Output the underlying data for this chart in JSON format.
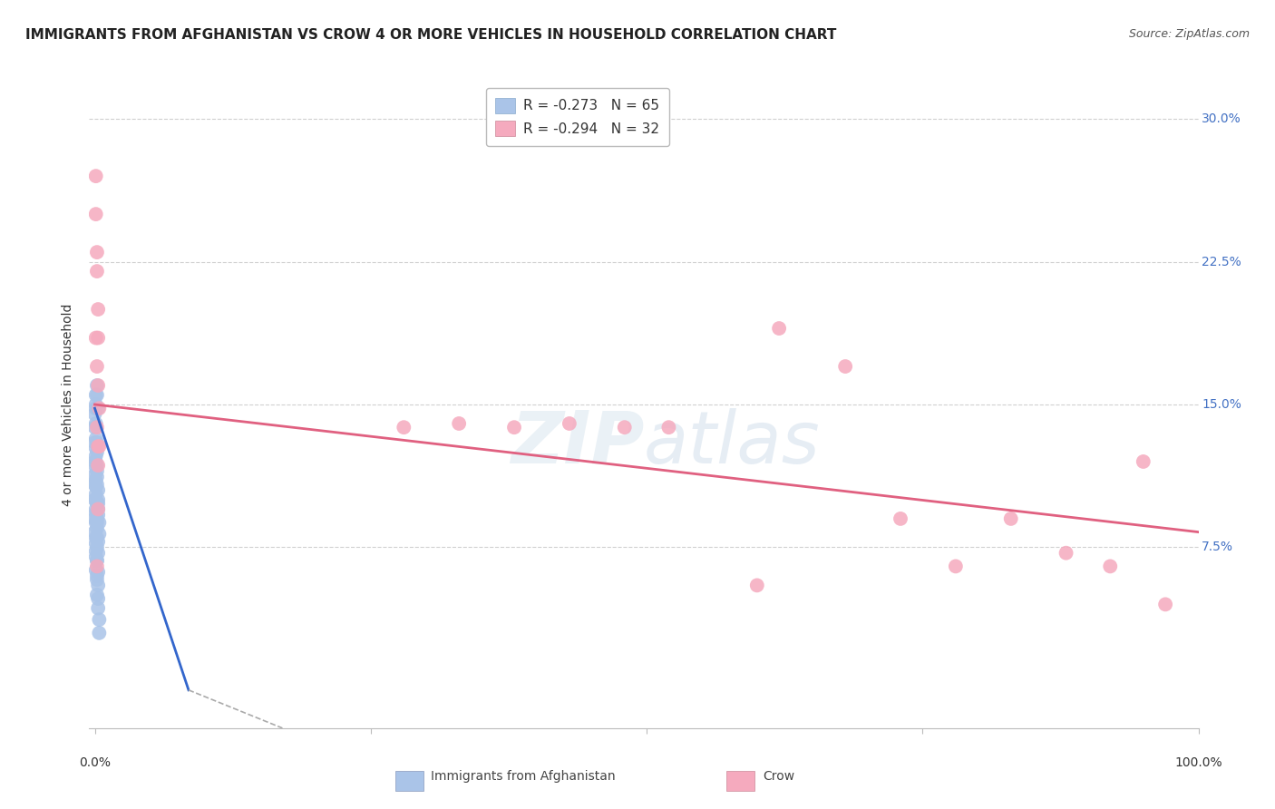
{
  "title": "IMMIGRANTS FROM AFGHANISTAN VS CROW 4 OR MORE VEHICLES IN HOUSEHOLD CORRELATION CHART",
  "source": "Source: ZipAtlas.com",
  "ylabel": "4 or more Vehicles in Household",
  "ytick_labels": [
    "7.5%",
    "15.0%",
    "22.5%",
    "30.0%"
  ],
  "ytick_values": [
    0.075,
    0.15,
    0.225,
    0.3
  ],
  "xlim": [
    -0.005,
    1.0
  ],
  "ylim": [
    -0.02,
    0.32
  ],
  "legend1_label": "R = -0.273   N = 65",
  "legend2_label": "R = -0.294   N = 32",
  "legend1_color": "#aac4e8",
  "legend2_color": "#f5aabe",
  "watermark": "ZIPatlas",
  "blue_scatter_x": [
    0.0,
    0.001,
    0.001,
    0.002,
    0.002,
    0.002,
    0.002,
    0.003,
    0.003,
    0.003,
    0.0,
    0.001,
    0.001,
    0.001,
    0.002,
    0.002,
    0.003,
    0.003,
    0.004,
    0.004,
    0.0,
    0.001,
    0.001,
    0.001,
    0.001,
    0.002,
    0.002,
    0.002,
    0.003,
    0.003,
    0.0,
    0.0,
    0.001,
    0.001,
    0.001,
    0.002,
    0.002,
    0.002,
    0.002,
    0.003,
    0.0,
    0.0,
    0.001,
    0.001,
    0.001,
    0.001,
    0.002,
    0.002,
    0.003,
    0.003,
    0.0,
    0.0,
    0.001,
    0.001,
    0.001,
    0.002,
    0.002,
    0.003,
    0.004,
    0.004,
    0.001,
    0.001,
    0.002,
    0.002,
    0.003
  ],
  "blue_scatter_y": [
    0.145,
    0.15,
    0.14,
    0.13,
    0.125,
    0.118,
    0.112,
    0.105,
    0.098,
    0.092,
    0.138,
    0.132,
    0.127,
    0.12,
    0.115,
    0.108,
    0.1,
    0.095,
    0.088,
    0.082,
    0.13,
    0.123,
    0.117,
    0.11,
    0.103,
    0.098,
    0.09,
    0.085,
    0.078,
    0.072,
    0.12,
    0.113,
    0.107,
    0.1,
    0.093,
    0.088,
    0.08,
    0.075,
    0.068,
    0.062,
    0.108,
    0.1,
    0.095,
    0.088,
    0.08,
    0.073,
    0.068,
    0.06,
    0.055,
    0.048,
    0.09,
    0.083,
    0.077,
    0.07,
    0.063,
    0.058,
    0.05,
    0.043,
    0.037,
    0.03,
    0.155,
    0.148,
    0.16,
    0.155,
    0.148
  ],
  "pink_scatter_x": [
    0.001,
    0.001,
    0.002,
    0.002,
    0.003,
    0.003,
    0.002,
    0.003,
    0.004,
    0.002,
    0.003,
    0.001,
    0.003,
    0.004,
    0.28,
    0.33,
    0.38,
    0.43,
    0.48,
    0.52,
    0.62,
    0.68,
    0.73,
    0.78,
    0.83,
    0.88,
    0.92,
    0.95,
    0.003,
    0.002,
    0.6,
    0.97
  ],
  "pink_scatter_y": [
    0.27,
    0.25,
    0.23,
    0.22,
    0.2,
    0.185,
    0.17,
    0.16,
    0.148,
    0.138,
    0.128,
    0.185,
    0.118,
    0.128,
    0.138,
    0.14,
    0.138,
    0.14,
    0.138,
    0.138,
    0.19,
    0.17,
    0.09,
    0.065,
    0.09,
    0.072,
    0.065,
    0.12,
    0.095,
    0.065,
    0.055,
    0.045
  ],
  "blue_trend_x1": 0.0,
  "blue_trend_y1": 0.148,
  "blue_trend_x2": 0.085,
  "blue_trend_y2": 0.0,
  "blue_trend_dash_x2": 0.17,
  "blue_trend_dash_y2": -0.02,
  "pink_trend_x1": 0.0,
  "pink_trend_y1": 0.15,
  "pink_trend_x2": 1.0,
  "pink_trend_y2": 0.083,
  "background_color": "#ffffff",
  "grid_color": "#d0d0d0",
  "title_fontsize": 11,
  "source_fontsize": 9,
  "ylabel_fontsize": 10,
  "tick_fontsize": 10,
  "scatter_size": 130
}
